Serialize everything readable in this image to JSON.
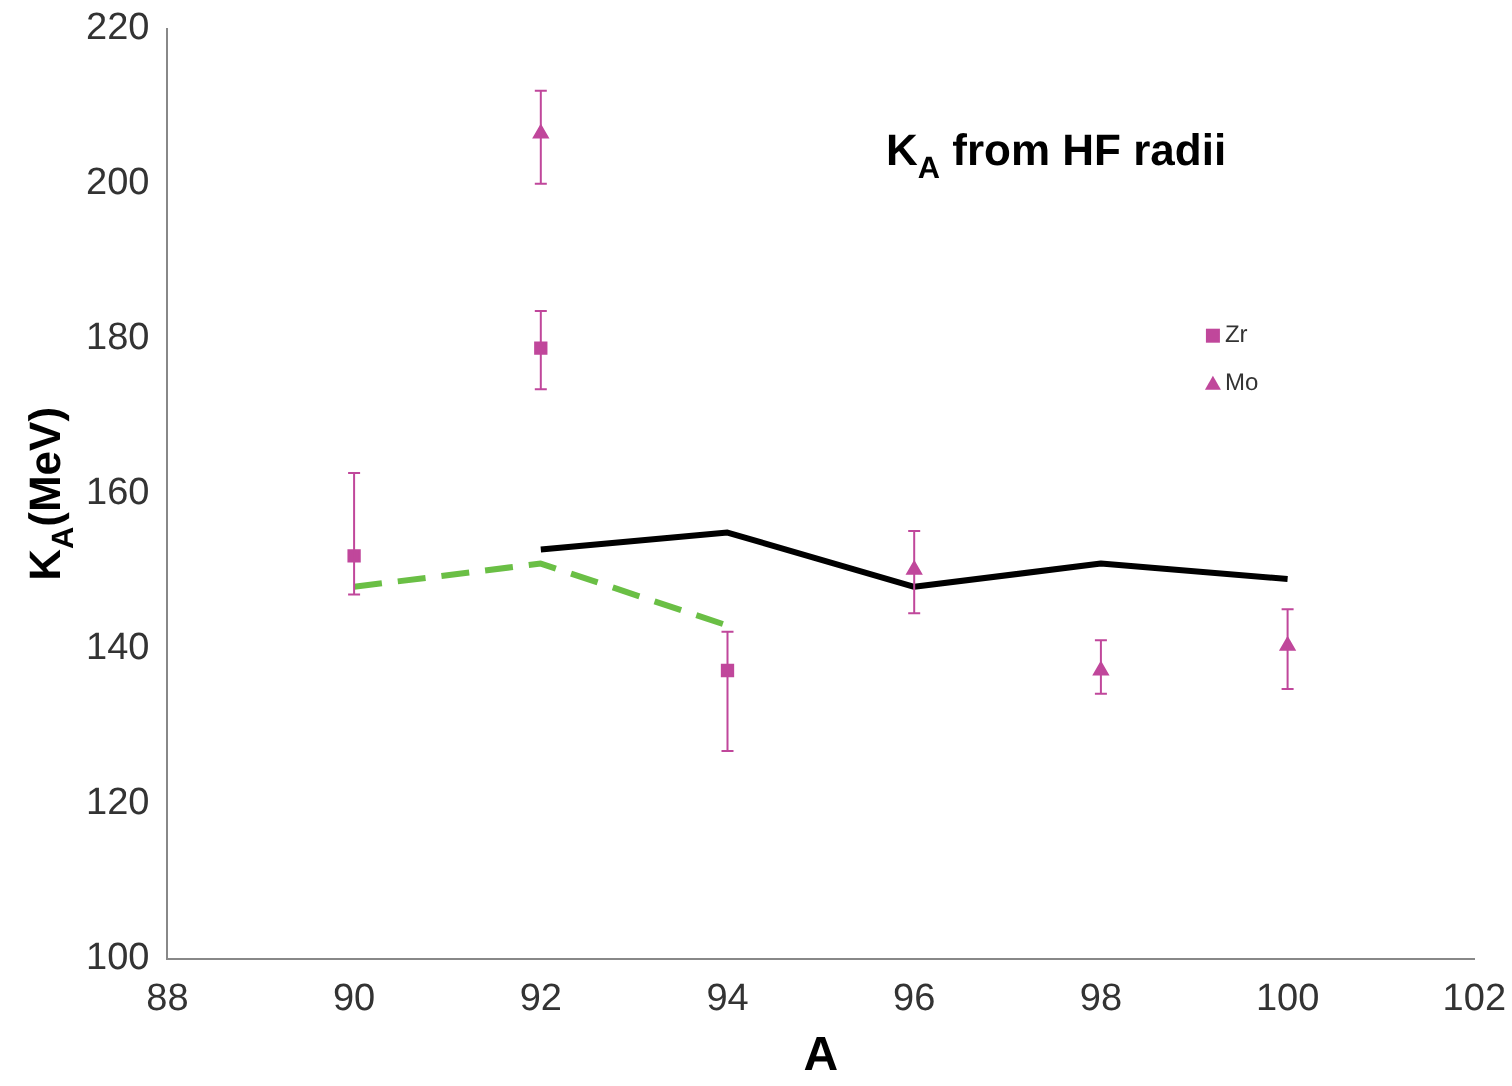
{
  "chart_data": {
    "type": "scatter",
    "xlabel": "A",
    "ylabel": "K$_{A}$(MeV)",
    "annotations": [
      "K$_{A}$ from HF radii"
    ],
    "xlim": [
      88,
      102
    ],
    "xticks": [
      88,
      90,
      92,
      94,
      96,
      98,
      100,
      102
    ],
    "ylim": [
      100,
      220
    ],
    "yticks": [
      100,
      120,
      140,
      160,
      180,
      200,
      220
    ],
    "grid": false,
    "legend": "right",
    "series": [
      {
        "name": "Zr",
        "marker": "square",
        "color": "#c0479b",
        "x": [
          90,
          92,
          94
        ],
        "values": [
          152,
          178.8,
          137.2
        ],
        "errors": [
          [
            147,
            162.7
          ],
          [
            173.5,
            183.6
          ],
          [
            126.8,
            142.2
          ]
        ]
      },
      {
        "name": "Mo",
        "marker": "triangle",
        "color": "#c0479b",
        "x": [
          92,
          96,
          98,
          100
        ],
        "values": [
          206.5,
          150.2,
          137.2,
          140.4
        ],
        "errors": [
          [
            200,
            212
          ],
          [
            144.6,
            155.2
          ],
          [
            134.2,
            141.1
          ],
          [
            134.8,
            145.1
          ]
        ]
      },
      {
        "type": "line",
        "marker": "none",
        "line_style": "solid",
        "color": "#000000",
        "x": [
          92,
          94,
          96,
          98,
          100
        ],
        "values": [
          152.8,
          155,
          148,
          151,
          149
        ]
      },
      {
        "type": "line",
        "marker": "none",
        "line_style": "dashed",
        "color": "#6abf45",
        "x": [
          90,
          92,
          94
        ],
        "values": [
          148,
          151,
          143
        ]
      }
    ]
  }
}
